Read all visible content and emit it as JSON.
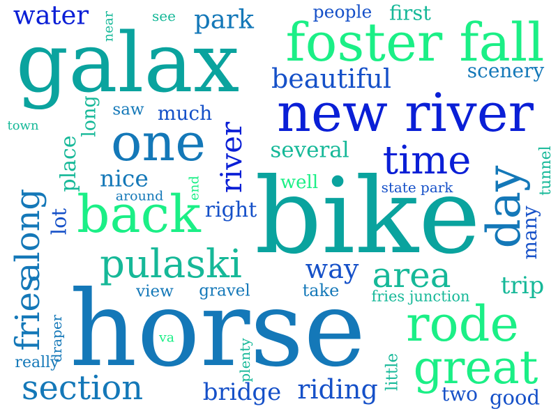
{
  "colors": {
    "background": "#ffffff",
    "blue": "#0a1fd6",
    "royal": "#1550c8",
    "steel": "#1478b8",
    "teal": "#0aa39e",
    "sea": "#16b898",
    "mint": "#1bef86"
  },
  "words": [
    {
      "text": "bike",
      "color": "#0aa39e"
    },
    {
      "text": "horse",
      "color": "#1478b8"
    },
    {
      "text": "galax",
      "color": "#0aa39e"
    },
    {
      "text": "new river",
      "color": "#0a1fd6"
    },
    {
      "text": "foster fall",
      "color": "#1bef86"
    },
    {
      "text": "one",
      "color": "#1478b8"
    },
    {
      "text": "back",
      "color": "#1bef86"
    },
    {
      "text": "pulaski",
      "color": "#16b898"
    },
    {
      "text": "rode",
      "color": "#1bef86"
    },
    {
      "text": "great",
      "color": "#1bef86"
    },
    {
      "text": "section",
      "color": "#1478b8"
    },
    {
      "text": "time",
      "color": "#0a1fd6"
    },
    {
      "text": "day",
      "color": "#1478b8"
    },
    {
      "text": "river",
      "color": "#0a1fd6"
    },
    {
      "text": "fries",
      "color": "#1478b8"
    },
    {
      "text": "along",
      "color": "#1478b8"
    },
    {
      "text": "area",
      "color": "#16b898"
    },
    {
      "text": "beautiful",
      "color": "#1550c8"
    },
    {
      "text": "water",
      "color": "#0a1fd6"
    },
    {
      "text": "park",
      "color": "#1478b8"
    },
    {
      "text": "riding",
      "color": "#1550c8"
    },
    {
      "text": "bridge",
      "color": "#1550c8"
    },
    {
      "text": "several",
      "color": "#16b898"
    },
    {
      "text": "way",
      "color": "#1550c8"
    },
    {
      "text": "nice",
      "color": "#1478b8"
    },
    {
      "text": "much",
      "color": "#1550c8"
    },
    {
      "text": "scenery",
      "color": "#1478b8"
    },
    {
      "text": "trip",
      "color": "#16b898"
    },
    {
      "text": "good",
      "color": "#1550c8"
    },
    {
      "text": "people",
      "color": "#1550c8"
    },
    {
      "text": "first",
      "color": "#16b898"
    },
    {
      "text": "place",
      "color": "#16b898"
    },
    {
      "text": "lot",
      "color": "#1550c8"
    },
    {
      "text": "right",
      "color": "#1550c8"
    },
    {
      "text": "well",
      "color": "#1bef86"
    },
    {
      "text": "many",
      "color": "#1550c8"
    },
    {
      "text": "two",
      "color": "#1550c8"
    },
    {
      "text": "long",
      "color": "#16b898"
    },
    {
      "text": "saw",
      "color": "#1478b8"
    },
    {
      "text": "tunnel",
      "color": "#16b898"
    },
    {
      "text": "state park",
      "color": "#1550c8"
    },
    {
      "text": "view",
      "color": "#1478b8"
    },
    {
      "text": "gravel",
      "color": "#1478b8"
    },
    {
      "text": "take",
      "color": "#1478b8"
    },
    {
      "text": "fries junction",
      "color": "#16b898"
    },
    {
      "text": "little",
      "color": "#16b898"
    },
    {
      "text": "plenty",
      "color": "#16b898"
    },
    {
      "text": "really",
      "color": "#1478b8"
    },
    {
      "text": "draper",
      "color": "#1478b8"
    },
    {
      "text": "around",
      "color": "#1478b8"
    },
    {
      "text": "end",
      "color": "#1bef86"
    },
    {
      "text": "near",
      "color": "#16b898"
    },
    {
      "text": "see",
      "color": "#16b898"
    },
    {
      "text": "town",
      "color": "#16b898"
    },
    {
      "text": "va",
      "color": "#1bef86"
    }
  ]
}
